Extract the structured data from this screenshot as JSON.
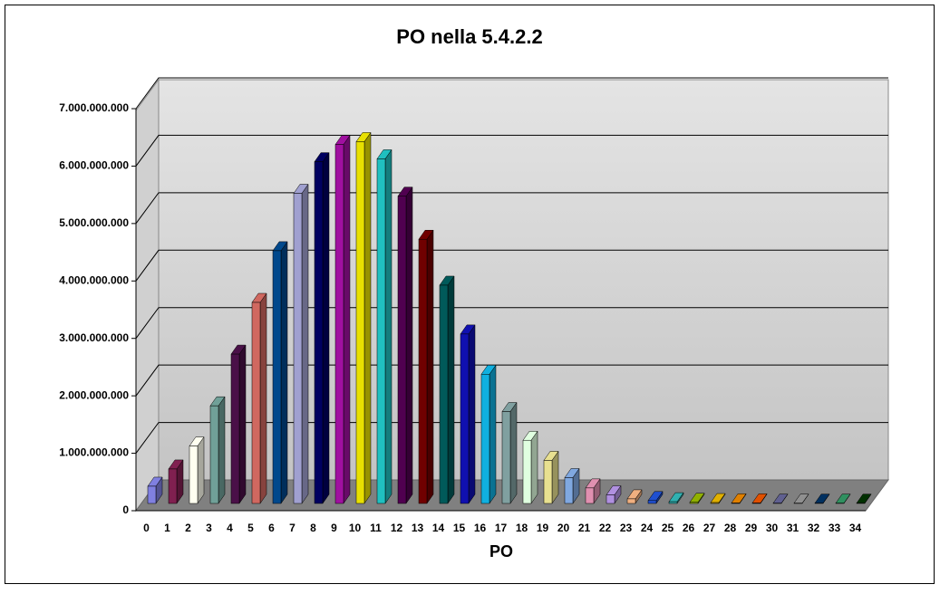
{
  "chart_data": {
    "type": "bar3d",
    "title": "PO nella 5.4.2.2",
    "x_label": "PO",
    "categories": [
      "0",
      "1",
      "2",
      "3",
      "4",
      "5",
      "6",
      "7",
      "8",
      "9",
      "10",
      "11",
      "12",
      "13",
      "14",
      "15",
      "16",
      "17",
      "18",
      "19",
      "20",
      "21",
      "22",
      "23",
      "24",
      "25",
      "26",
      "27",
      "28",
      "29",
      "30",
      "31",
      "32",
      "33",
      "34"
    ],
    "values": [
      300000000,
      600000000,
      1000000000,
      1700000000,
      2600000000,
      3500000000,
      4400000000,
      5400000000,
      5950000000,
      6250000000,
      6300000000,
      6000000000,
      5350000000,
      4600000000,
      3800000000,
      2950000000,
      2250000000,
      1600000000,
      1100000000,
      750000000,
      450000000,
      270000000,
      150000000,
      80000000,
      50000000,
      30000000,
      20000000,
      15000000,
      10000000,
      10000000,
      5000000,
      5000000,
      5000000,
      5000000,
      5000000
    ],
    "colors": [
      "#8080e0",
      "#802050",
      "#fffff0",
      "#70a098",
      "#4a1048",
      "#d06860",
      "#00488c",
      "#a0a0d0",
      "#000060",
      "#a010a0",
      "#e8e000",
      "#20c0c0",
      "#500050",
      "#700000",
      "#005a5a",
      "#1010b0",
      "#10b0e0",
      "#80a0a0",
      "#e0ffe0",
      "#e8e090",
      "#80a8e0",
      "#e090b0",
      "#b090e0",
      "#f0b080",
      "#2050d0",
      "#30b0b0",
      "#90b000",
      "#e0b000",
      "#e08000",
      "#e05000",
      "#606090",
      "#909090",
      "#003060",
      "#309060",
      "#003000"
    ],
    "ylim": [
      0,
      7000000000
    ],
    "yticks": [
      0,
      {
        "value": 1000000000,
        "label": "1.000.000.000"
      },
      {
        "value": 2000000000,
        "label": "2.000.000.000"
      },
      {
        "value": 3000000000,
        "label": "3.000.000.000"
      },
      {
        "value": 4000000000,
        "label": "4.000.000.000"
      },
      {
        "value": 5000000000,
        "label": "5.000.000.000"
      },
      {
        "value": 6000000000,
        "label": "6.000.000.000"
      },
      {
        "value": 7000000000,
        "label": "7.000.000.000"
      }
    ],
    "grid": true
  }
}
